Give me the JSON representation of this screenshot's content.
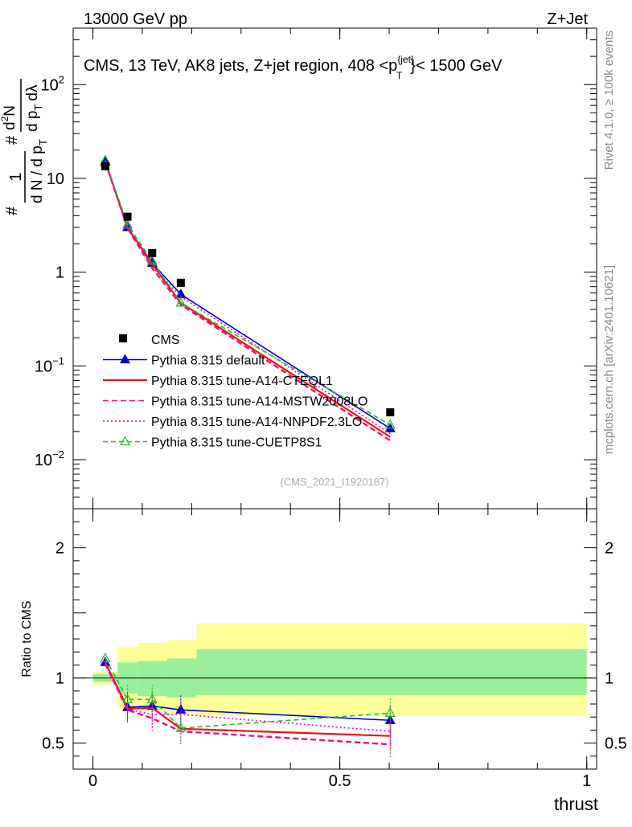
{
  "header": {
    "left": "13000 GeV pp",
    "right": "Z+Jet"
  },
  "chart_data": [
    {
      "type": "line",
      "panel": "main",
      "title": "CMS, 13 TeV, AK8 jets, Z+jet region, 408 <p_T^{jet}< 1500 GeV",
      "title_parts": {
        "prefix": "CMS, 13 TeV, AK8 jets, Z+jet region, 408 <",
        "p": "p",
        "sub": "T",
        "sup": "{jet}",
        "suffix": "}< 1500 GeV"
      },
      "ylabel": "1/N dN/dp_T d²N/dp_T dλ",
      "ylabel_parts": {
        "a": "#",
        "b": "1",
        "c": "d N / d p",
        "c_sub": "T",
        "d": "#",
        "e": "d",
        "e_sup": "2",
        "f": "N",
        "g": "d p",
        "g_sub": "T",
        "h": "d",
        "i": "λ"
      },
      "yscale": "log",
      "ylim": [
        0.003,
        400
      ],
      "xlim": [
        -0.04,
        1.02
      ],
      "yticks": [
        {
          "value": 100,
          "base": "10",
          "exp": "2"
        },
        {
          "value": 10,
          "base": "10",
          "exp": ""
        },
        {
          "value": 1,
          "base": "1",
          "exp": ""
        },
        {
          "value": 0.1,
          "base": "10",
          "exp": "−1"
        },
        {
          "value": 0.01,
          "base": "10",
          "exp": "−2"
        }
      ],
      "watermark": "(CMS_2021_I1920187)",
      "side_label_top": "Rivet 4.1.0, ≥ 100k events",
      "side_label_bottom": "mcplots.cern.ch [arXiv:2401.10621]",
      "legend": "middle-left",
      "data": {
        "name": "CMS",
        "x": [
          0.025,
          0.07,
          0.12,
          0.178,
          0.602
        ],
        "y": [
          13.5,
          3.9,
          1.6,
          0.77,
          0.032
        ]
      },
      "series": [
        {
          "name": "Pythia 8.315 default",
          "color": "#0000cc",
          "dash": "",
          "marker": "triangle-filled",
          "x": [
            0.025,
            0.07,
            0.12,
            0.178,
            0.602
          ],
          "y": [
            15.0,
            3.0,
            1.25,
            0.58,
            0.0215
          ]
        },
        {
          "name": "Pythia 8.315 tune-A14-CTEQL1",
          "color": "#ee1111",
          "dash": "",
          "marker": "none",
          "x": [
            0.025,
            0.07,
            0.12,
            0.178,
            0.602
          ],
          "y": [
            15.1,
            3.0,
            1.22,
            0.47,
            0.0175
          ]
        },
        {
          "name": "Pythia 8.315 tune-A14-MSTW2008LO",
          "color": "#ee1177",
          "dash": "7,4",
          "marker": "none",
          "x": [
            0.025,
            0.07,
            0.12,
            0.178,
            0.602
          ],
          "y": [
            15.0,
            2.95,
            1.1,
            0.45,
            0.016
          ]
        },
        {
          "name": "Pythia 8.315 tune-A14-NNPDF2.3LO",
          "color": "#ee00cc",
          "dash": "2,3",
          "marker": "none",
          "x": [
            0.025,
            0.07,
            0.12,
            0.178,
            0.602
          ],
          "y": [
            15.1,
            2.95,
            1.15,
            0.55,
            0.019
          ]
        },
        {
          "name": "Pythia 8.315 tune-CUETP8S1",
          "color": "#22bb22",
          "dash": "6,4",
          "marker": "triangle-open",
          "x": [
            0.025,
            0.07,
            0.12,
            0.178,
            0.602
          ],
          "y": [
            15.5,
            3.2,
            1.32,
            0.47,
            0.0235
          ]
        }
      ]
    },
    {
      "type": "line",
      "panel": "ratio",
      "ylabel": "Ratio to CMS",
      "xlabel": "thrust",
      "xlim": [
        -0.04,
        1.02
      ],
      "ylim": [
        0.3,
        2.3
      ],
      "xticks": [
        {
          "value": 0,
          "label": "0"
        },
        {
          "value": 0.5,
          "label": "0.5"
        },
        {
          "value": 1,
          "label": "1"
        }
      ],
      "yticks": [
        {
          "value": 0.5,
          "label": "0.5"
        },
        {
          "value": 1,
          "label": "1"
        },
        {
          "value": 2,
          "label": "2"
        }
      ],
      "bands": {
        "bins": [
          [
            0.0,
            0.05
          ],
          [
            0.05,
            0.09
          ],
          [
            0.09,
            0.15
          ],
          [
            0.15,
            0.21
          ],
          [
            0.21,
            1.0
          ]
        ],
        "yellow": [
          [
            0.95,
            1.05
          ],
          [
            0.76,
            1.24
          ],
          [
            0.75,
            1.27
          ],
          [
            0.73,
            1.29
          ],
          [
            0.71,
            1.42
          ]
        ],
        "green": [
          [
            0.97,
            1.03
          ],
          [
            0.88,
            1.12
          ],
          [
            0.86,
            1.13
          ],
          [
            0.85,
            1.15
          ],
          [
            0.87,
            1.22
          ]
        ]
      },
      "series": [
        {
          "name": "Pythia 8.315 default",
          "y": [
            1.12,
            0.775,
            0.785,
            0.755,
            0.675
          ]
        },
        {
          "name": "Pythia 8.315 tune-A14-CTEQL1",
          "y": [
            1.12,
            0.765,
            0.77,
            0.61,
            0.555
          ]
        },
        {
          "name": "Pythia 8.315 tune-A14-MSTW2008LO",
          "y": [
            1.11,
            0.755,
            0.69,
            0.59,
            0.49
          ]
        },
        {
          "name": "Pythia 8.315 tune-A14-NNPDF2.3LO",
          "y": [
            1.12,
            0.76,
            0.72,
            0.72,
            0.59
          ]
        },
        {
          "name": "Pythia 8.315 tune-CUETP8S1",
          "y": [
            1.15,
            0.835,
            0.835,
            0.615,
            0.73
          ]
        }
      ]
    }
  ]
}
